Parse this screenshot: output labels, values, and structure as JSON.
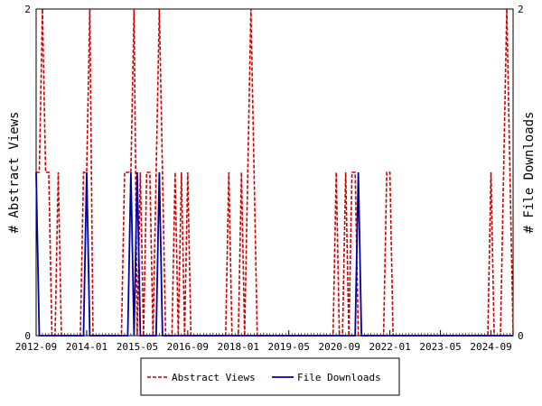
{
  "chart_data": {
    "type": "line",
    "title": "",
    "xlabel": "",
    "ylabel_left": "# Abstract Views",
    "ylabel_right": "# File Downloads",
    "x_start": "2012-09",
    "x_end": "2025-04",
    "x_tick_labels": [
      "2012-09",
      "2014-01",
      "2015-05",
      "2016-09",
      "2018-01",
      "2019-05",
      "2020-09",
      "2022-01",
      "2023-05",
      "2024-09"
    ],
    "y_left_ticks": [
      "0",
      "2"
    ],
    "y_right_ticks": [
      "0",
      "2"
    ],
    "ylim": [
      0,
      2
    ],
    "grid": false,
    "legend_position": "bottom",
    "series": [
      {
        "name": "Abstract Views",
        "axis": "left",
        "color": "#cc0000",
        "style": "dashed",
        "points": [
          [
            "2012-09",
            1
          ],
          [
            "2012-10",
            1
          ],
          [
            "2012-11",
            2
          ],
          [
            "2012-12",
            1
          ],
          [
            "2013-01",
            1
          ],
          [
            "2013-04",
            1
          ],
          [
            "2013-12",
            1
          ],
          [
            "2014-01",
            1
          ],
          [
            "2014-02",
            2
          ],
          [
            "2015-01",
            1
          ],
          [
            "2015-02",
            1
          ],
          [
            "2015-03",
            1
          ],
          [
            "2015-04",
            2
          ],
          [
            "2015-06",
            1
          ],
          [
            "2015-08",
            1
          ],
          [
            "2015-09",
            1
          ],
          [
            "2015-11",
            1
          ],
          [
            "2015-12",
            2
          ],
          [
            "2016-01",
            1
          ],
          [
            "2016-05",
            1
          ],
          [
            "2016-07",
            1
          ],
          [
            "2016-09",
            1
          ],
          [
            "2017-10",
            1
          ],
          [
            "2018-02",
            1
          ],
          [
            "2018-04",
            1
          ],
          [
            "2018-05",
            2
          ],
          [
            "2018-06",
            1
          ],
          [
            "2020-08",
            1
          ],
          [
            "2020-11",
            1
          ],
          [
            "2021-01",
            1
          ],
          [
            "2021-02",
            1
          ],
          [
            "2021-12",
            1
          ],
          [
            "2022-01",
            1
          ],
          [
            "2024-09",
            1
          ],
          [
            "2025-01",
            1
          ],
          [
            "2025-02",
            2
          ],
          [
            "2025-03",
            1
          ]
        ]
      },
      {
        "name": "File Downloads",
        "axis": "right",
        "color": "#0000aa",
        "style": "solid",
        "points": [
          [
            "2012-09",
            1
          ],
          [
            "2014-01",
            1
          ],
          [
            "2015-03",
            1
          ],
          [
            "2015-05",
            1
          ],
          [
            "2015-12",
            1
          ],
          [
            "2021-03",
            1
          ]
        ]
      }
    ]
  },
  "legend": {
    "items": [
      {
        "label": "Abstract Views",
        "color": "#cc0000",
        "style": "dashed"
      },
      {
        "label": "File Downloads",
        "color": "#0000aa",
        "style": "solid"
      }
    ]
  }
}
